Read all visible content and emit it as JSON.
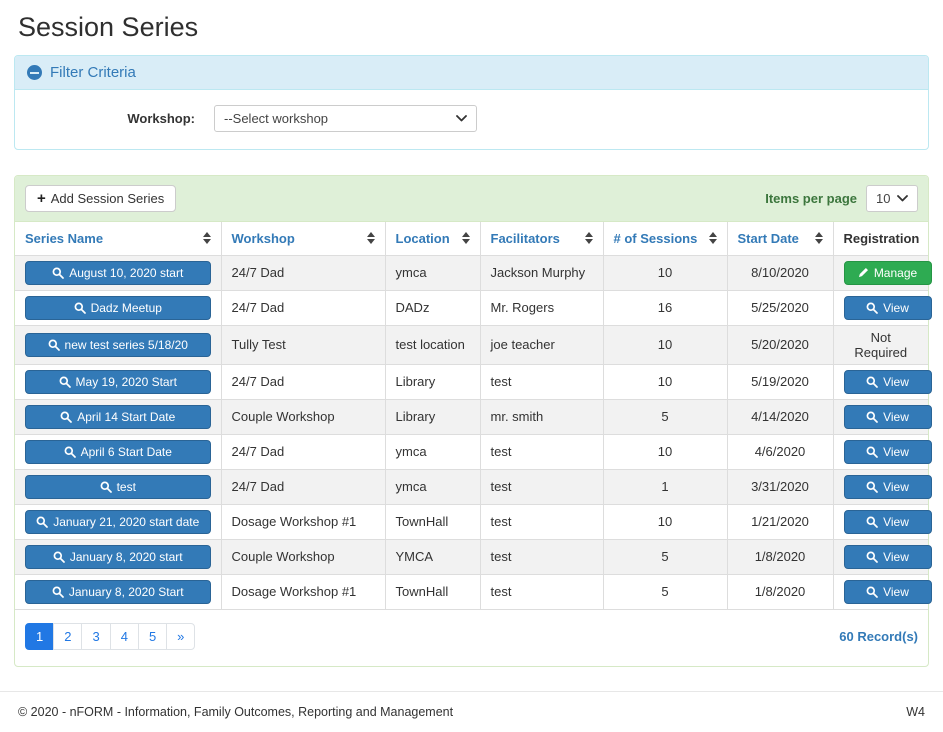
{
  "page": {
    "title": "Session Series"
  },
  "colors": {
    "primary": "#337ab7",
    "primary_dark": "#2a6496",
    "success": "#2eab52",
    "success_dark": "#259544",
    "info_bg": "#d9edf7",
    "info_border": "#bce8f1",
    "success_bg": "#dff0d8",
    "success_border": "#d6e9c6",
    "page_active": "#2178e4",
    "page_link": "#2178e4"
  },
  "filter": {
    "title": "Filter Criteria",
    "workshop_label": "Workshop:",
    "workshop_value": "--Select workshop"
  },
  "toolbar": {
    "add_button": "Add Session Series",
    "items_per_page_label": "Items per page",
    "items_per_page_value": "10"
  },
  "table": {
    "columns": [
      {
        "label": "Series Name",
        "sortable": true
      },
      {
        "label": "Workshop",
        "sortable": true
      },
      {
        "label": "Location",
        "sortable": true
      },
      {
        "label": "Facilitators",
        "sortable": true
      },
      {
        "label": "# of Sessions",
        "sortable": true
      },
      {
        "label": "Start Date",
        "sortable": true
      },
      {
        "label": "Registration",
        "sortable": false
      }
    ],
    "rows": [
      {
        "series_name": "August 10, 2020 start",
        "workshop": "24/7 Dad",
        "location": "ymca",
        "facilitators": "Jackson Murphy",
        "sessions": "10",
        "start_date": "8/10/2020",
        "registration": {
          "type": "manage",
          "label": "Manage"
        }
      },
      {
        "series_name": "Dadz Meetup",
        "workshop": "24/7 Dad",
        "location": "DADz",
        "facilitators": "Mr. Rogers",
        "sessions": "16",
        "start_date": "5/25/2020",
        "registration": {
          "type": "view",
          "label": "View"
        }
      },
      {
        "series_name": "new test series 5/18/20",
        "workshop": "Tully Test",
        "location": "test location",
        "facilitators": "joe teacher",
        "sessions": "10",
        "start_date": "5/20/2020",
        "registration": {
          "type": "text",
          "label": "Not Required"
        }
      },
      {
        "series_name": "May 19, 2020 Start",
        "workshop": "24/7 Dad",
        "location": "Library",
        "facilitators": "test",
        "sessions": "10",
        "start_date": "5/19/2020",
        "registration": {
          "type": "view",
          "label": "View"
        }
      },
      {
        "series_name": "April 14 Start Date",
        "workshop": "Couple Workshop",
        "location": "Library",
        "facilitators": "mr. smith",
        "sessions": "5",
        "start_date": "4/14/2020",
        "registration": {
          "type": "view",
          "label": "View"
        }
      },
      {
        "series_name": "April 6 Start Date",
        "workshop": "24/7 Dad",
        "location": "ymca",
        "facilitators": "test",
        "sessions": "10",
        "start_date": "4/6/2020",
        "registration": {
          "type": "view",
          "label": "View"
        }
      },
      {
        "series_name": "test",
        "workshop": "24/7 Dad",
        "location": "ymca",
        "facilitators": "test",
        "sessions": "1",
        "start_date": "3/31/2020",
        "registration": {
          "type": "view",
          "label": "View"
        }
      },
      {
        "series_name": "January 21, 2020 start date",
        "workshop": "Dosage Workshop #1",
        "location": "TownHall",
        "facilitators": "test",
        "sessions": "10",
        "start_date": "1/21/2020",
        "registration": {
          "type": "view",
          "label": "View"
        }
      },
      {
        "series_name": "January 8, 2020 start",
        "workshop": "Couple Workshop",
        "location": "YMCA",
        "facilitators": "test",
        "sessions": "5",
        "start_date": "1/8/2020",
        "registration": {
          "type": "view",
          "label": "View"
        }
      },
      {
        "series_name": "January 8, 2020 Start",
        "workshop": "Dosage Workshop #1",
        "location": "TownHall",
        "facilitators": "test",
        "sessions": "5",
        "start_date": "1/8/2020",
        "registration": {
          "type": "view",
          "label": "View"
        }
      }
    ]
  },
  "pagination": {
    "pages": [
      "1",
      "2",
      "3",
      "4",
      "5",
      "»"
    ],
    "active": "1",
    "records": "60 Record(s)"
  },
  "footer": {
    "copyright": "© 2020 - nFORM - Information, Family Outcomes, Reporting and Management",
    "version": "W4"
  }
}
